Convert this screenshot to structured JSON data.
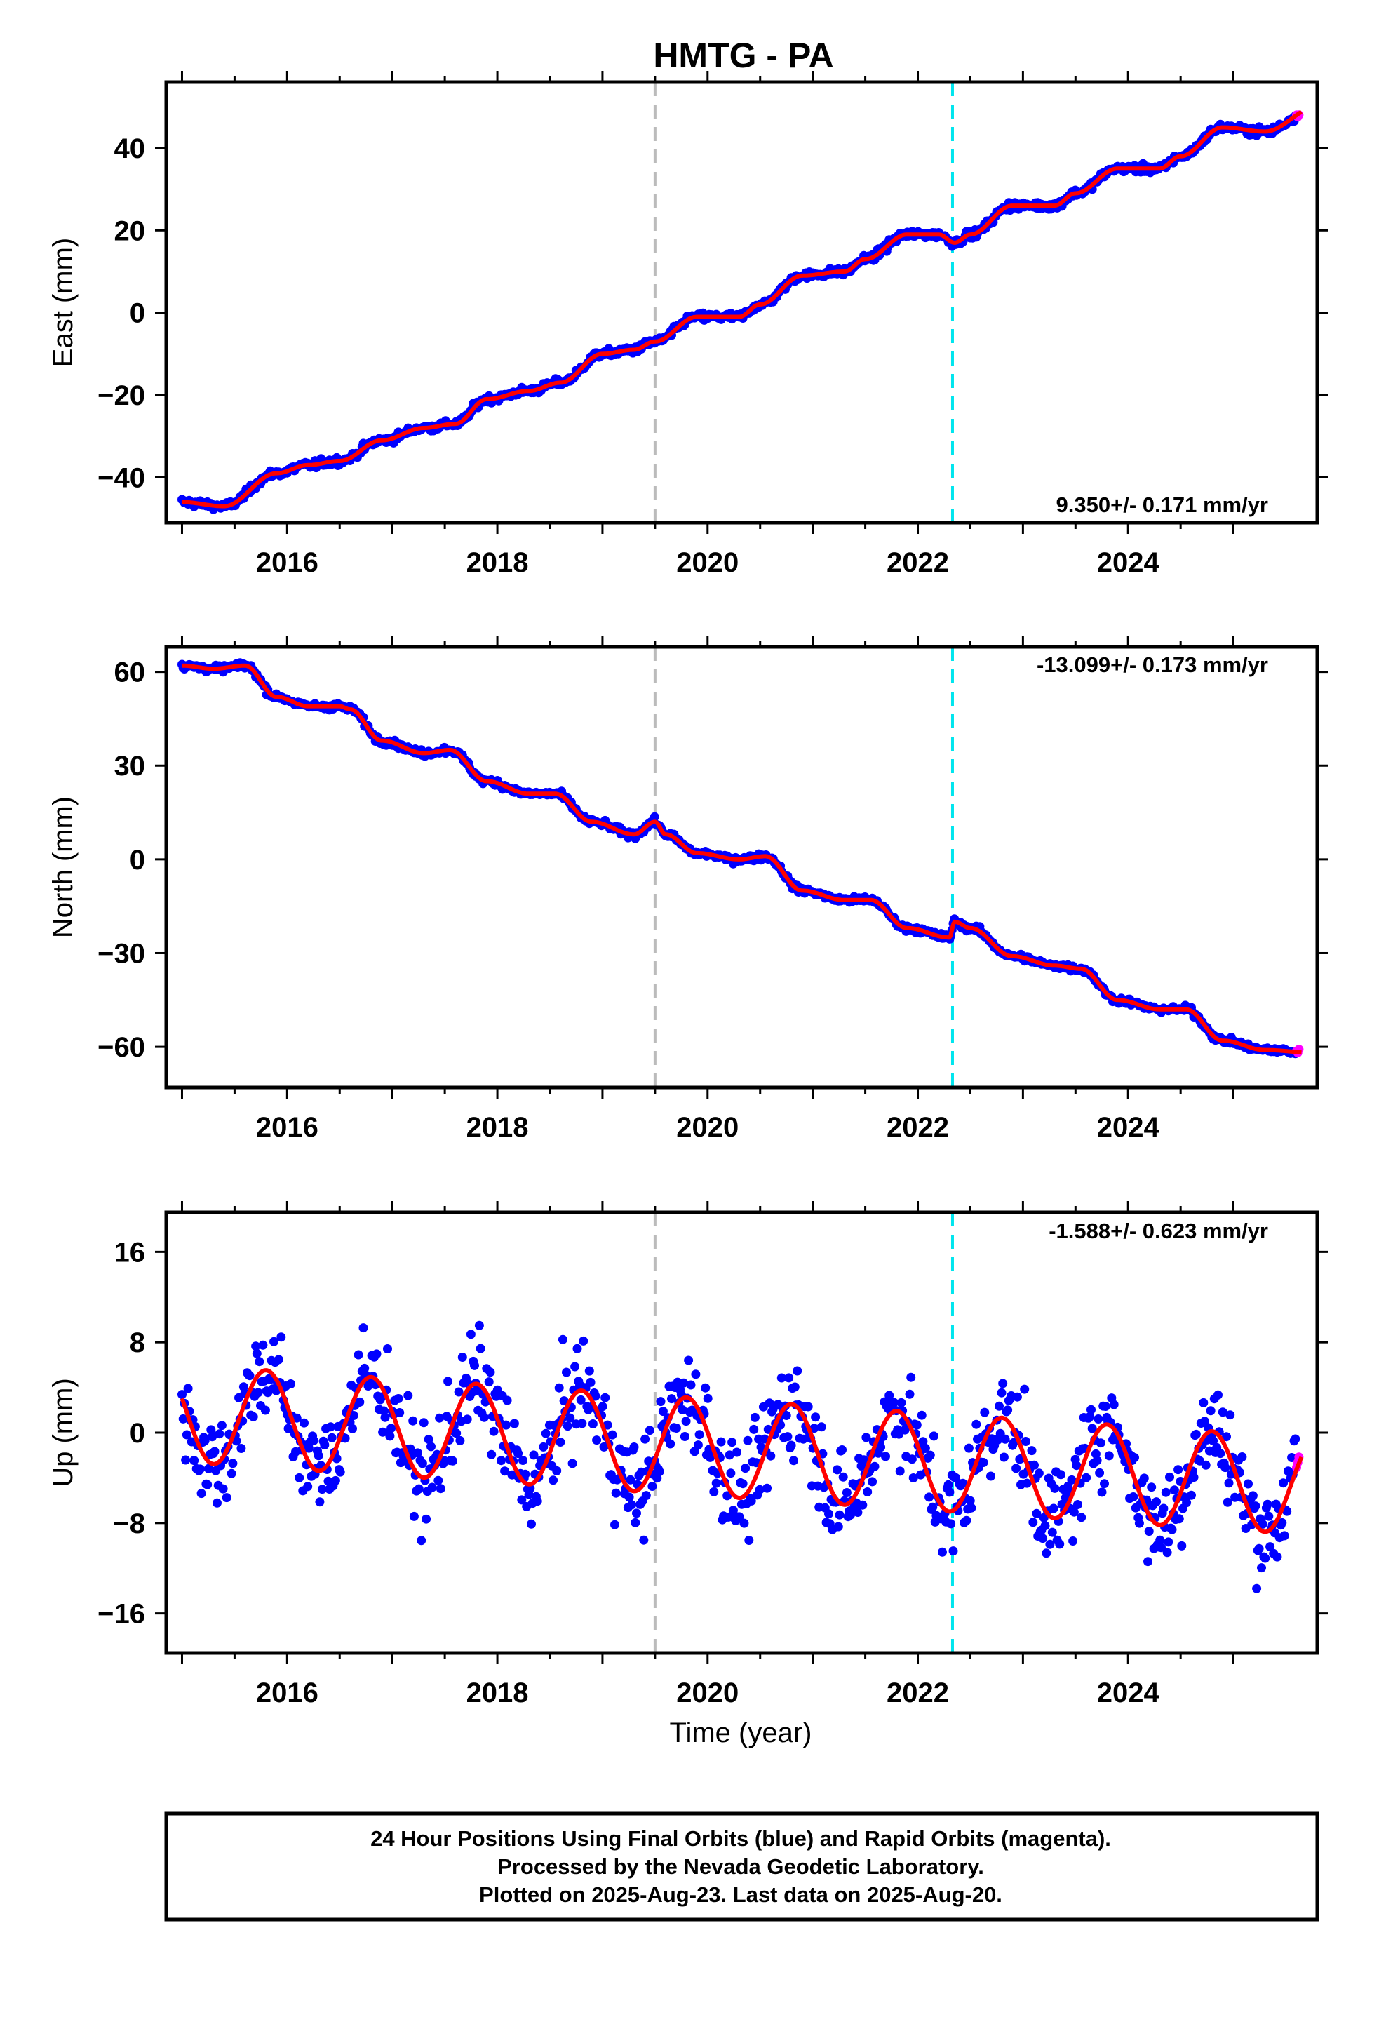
{
  "chart_data": {
    "type": "scatter",
    "title": "HMTG - PA",
    "xlabel": "Time (year)",
    "xlim": [
      2014.85,
      2025.8
    ],
    "x_ticks": [
      2016,
      2018,
      2020,
      2022,
      2024
    ],
    "x_tick_labels": [
      "2016",
      "2018",
      "2020",
      "2022",
      "2024"
    ],
    "reference_lines": [
      {
        "x": 2019.5,
        "color": "#bbbbbb",
        "style": "dashed"
      },
      {
        "x": 2022.33,
        "color": "#00e5ee",
        "style": "dashed"
      }
    ],
    "colors": {
      "final_orbits": "#0000ff",
      "rapid_orbits": "#ff00ff",
      "model": "#ff0000"
    },
    "rapid_start": 2025.6,
    "panels": [
      {
        "name": "east",
        "ylabel": "East (mm)",
        "ylim": [
          -51,
          56
        ],
        "y_ticks": [
          -40,
          -20,
          0,
          20,
          40
        ],
        "y_tick_labels": [
          "−40",
          "−20",
          "0",
          "20",
          "40"
        ],
        "rate_label": "9.350+/- 0.171 mm/yr",
        "rate_position": "bottom-right",
        "noise": 1.1,
        "trend_x": [
          2015.0,
          2015.4,
          2015.9,
          2016.2,
          2016.5,
          2016.9,
          2017.3,
          2017.6,
          2017.9,
          2018.3,
          2018.6,
          2019.0,
          2019.3,
          2019.5,
          2019.9,
          2020.3,
          2020.5,
          2020.9,
          2021.3,
          2021.5,
          2021.9,
          2022.2,
          2022.35,
          2022.5,
          2022.9,
          2023.3,
          2023.5,
          2023.9,
          2024.3,
          2024.5,
          2024.9,
          2025.3,
          2025.8
        ],
        "trend_y": [
          -46,
          -47,
          -39,
          -37,
          -36,
          -31,
          -28,
          -27,
          -21,
          -19,
          -17,
          -10,
          -9,
          -7,
          -1,
          -1,
          2,
          9,
          10,
          13,
          19,
          19,
          17,
          19,
          26,
          26,
          29,
          35,
          35,
          38,
          45,
          44,
          50
        ]
      },
      {
        "name": "north",
        "ylabel": "North (mm)",
        "ylim": [
          -73,
          68
        ],
        "y_ticks": [
          -60,
          -30,
          0,
          30,
          60
        ],
        "y_tick_labels": [
          "−60",
          "−30",
          "0",
          "30",
          "60"
        ],
        "rate_label": "-13.099+/- 0.173 mm/yr",
        "rate_position": "top-right",
        "noise": 1.2,
        "trend_x": [
          2015.0,
          2015.3,
          2015.6,
          2015.9,
          2016.2,
          2016.5,
          2016.6,
          2016.9,
          2017.3,
          2017.55,
          2017.9,
          2018.3,
          2018.55,
          2018.9,
          2019.3,
          2019.5,
          2019.6,
          2019.9,
          2020.3,
          2020.55,
          2020.9,
          2021.3,
          2021.55,
          2021.9,
          2022.3,
          2022.35,
          2022.5,
          2022.9,
          2023.3,
          2023.55,
          2023.9,
          2024.3,
          2024.55,
          2024.9,
          2025.3,
          2025.8
        ],
        "trend_y": [
          62,
          61,
          62,
          52,
          49,
          49,
          48,
          38,
          34,
          35,
          25,
          21,
          21,
          12,
          8,
          12,
          8,
          2,
          0,
          1,
          -10,
          -13,
          -13,
          -22,
          -25,
          -20,
          -22,
          -31,
          -34,
          -35,
          -45,
          -48,
          -48,
          -58,
          -61,
          -62
        ]
      },
      {
        "name": "up",
        "ylabel": "Up (mm)",
        "ylim": [
          -19.5,
          19.5
        ],
        "y_ticks": [
          -16,
          -8,
          0,
          8,
          16
        ],
        "y_tick_labels": [
          "−16",
          "−8",
          "0",
          "8",
          "16"
        ],
        "rate_label": "-1.588+/- 0.623 mm/yr",
        "rate_position": "top-right",
        "noise": 3.0,
        "model": {
          "t0": 2015.0,
          "offset": 1.7,
          "rate": -0.6,
          "amp": 4.3,
          "phase_peak": 0.8
        }
      }
    ],
    "footer": [
      "24 Hour Positions Using Final Orbits (blue) and Rapid Orbits (magenta).",
      "Processed by the Nevada Geodetic Laboratory.",
      "Plotted on 2025-Aug-23. Last data on 2025-Aug-20."
    ]
  }
}
